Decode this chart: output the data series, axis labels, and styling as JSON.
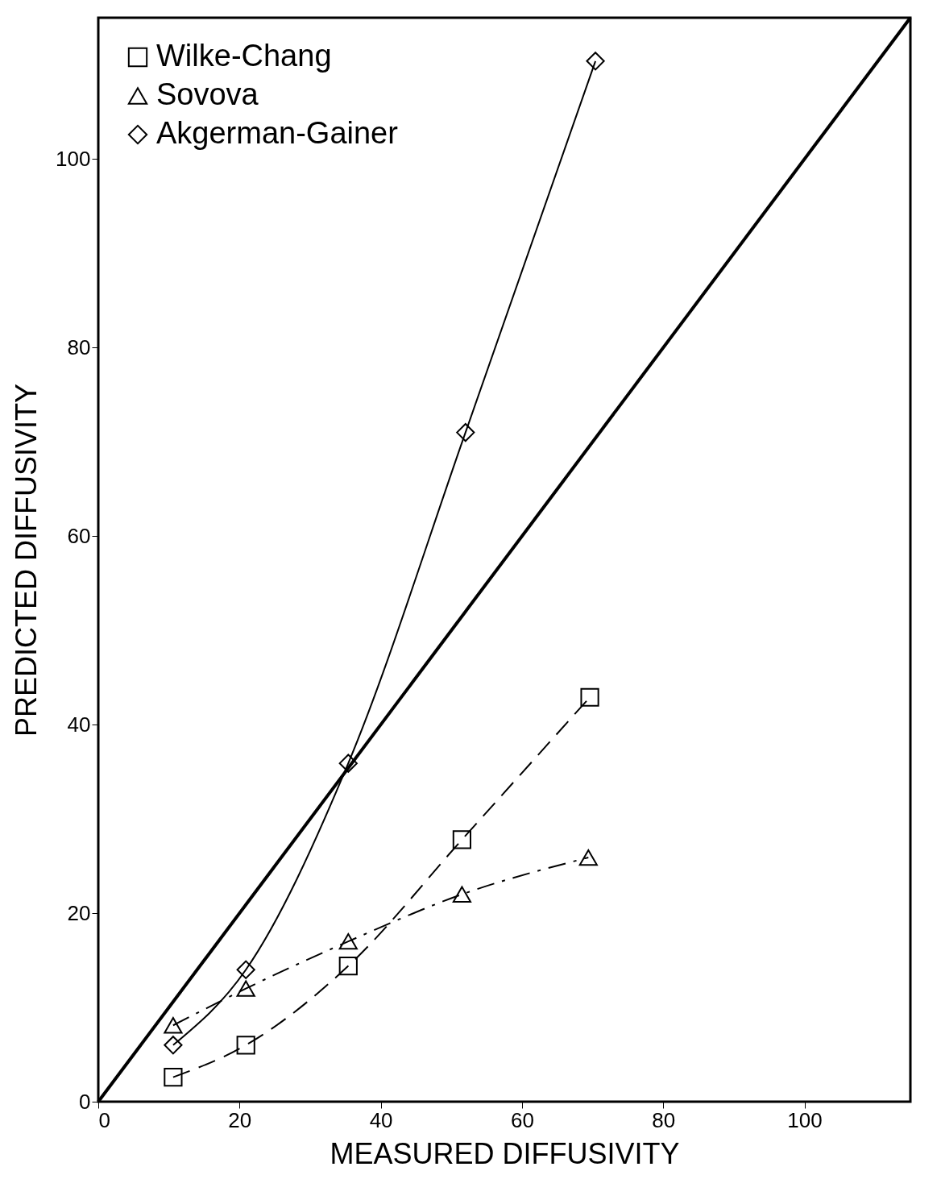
{
  "chart_data": {
    "type": "line",
    "xlabel": "MEASURED DIFFUSIVITY",
    "ylabel": "PREDICTED DIFFUSIVITY",
    "xlim": [
      0,
      115
    ],
    "ylim": [
      0,
      115
    ],
    "xticks": [
      0,
      20,
      40,
      60,
      80,
      100
    ],
    "yticks": [
      0,
      20,
      40,
      60,
      80,
      100
    ],
    "grid": false,
    "legend": "top left",
    "series": [
      {
        "name": "Wilke-Chang",
        "color": "#000000",
        "marker": "square",
        "line_style": "dashed",
        "x": [
          10.6,
          20.9,
          35.4,
          51.5,
          69.6
        ],
        "values": [
          2.6,
          6.0,
          14.4,
          27.8,
          42.9
        ]
      },
      {
        "name": "Sovova",
        "color": "#000000",
        "marker": "triangle",
        "line_style": "dashdot",
        "x": [
          10.6,
          20.9,
          35.4,
          51.5,
          69.4
        ],
        "values": [
          8.1,
          12.0,
          17.0,
          22.0,
          25.9
        ]
      },
      {
        "name": "Akgerman-Gainer",
        "color": "#000000",
        "marker": "diamond",
        "line_style": "solid",
        "x": [
          10.6,
          20.9,
          35.4,
          52.0,
          70.4
        ],
        "values": [
          6.0,
          14.0,
          35.9,
          71.0,
          110.4
        ]
      },
      {
        "color": "#000000",
        "marker": "none",
        "line_style": "solid",
        "x": [
          0,
          115
        ],
        "values": [
          0,
          115
        ]
      }
    ]
  }
}
